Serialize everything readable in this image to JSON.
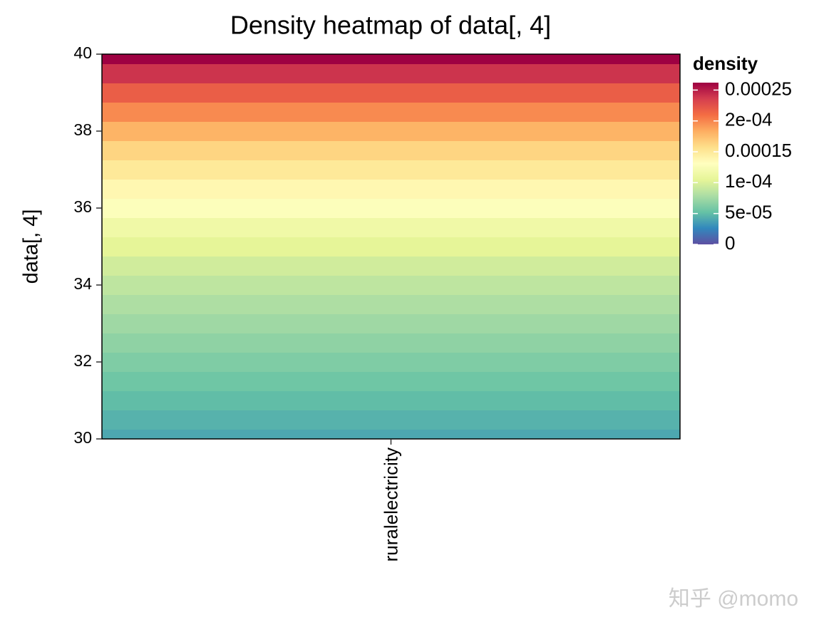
{
  "chart_data": {
    "type": "heatmap",
    "title": "Density heatmap of data[, 4]",
    "ylabel": "data[, 4]",
    "categories": [
      "ruralelectricity"
    ],
    "y": [
      30,
      30.5,
      31,
      31.5,
      32,
      32.5,
      33,
      33.5,
      34,
      34.5,
      35,
      35.5,
      36,
      36.5,
      37,
      37.5,
      38,
      38.5,
      39,
      39.5,
      40
    ],
    "density": [
      4e-05,
      4.5e-05,
      5e-05,
      5.6e-05,
      6.2e-05,
      6.8e-05,
      7.4e-05,
      8e-05,
      8.7e-05,
      9.5e-05,
      0.000105,
      0.000115,
      0.000128,
      0.000138,
      0.00015,
      0.000163,
      0.00018,
      0.000198,
      0.000218,
      0.00024,
      0.000262
    ],
    "ylim": [
      30,
      40
    ],
    "yticks": [
      30,
      32,
      34,
      36,
      38,
      40
    ],
    "legend_title": "density",
    "clim": [
      0,
      0.000262
    ],
    "cticks": [
      0,
      {
        "value": 5e-05,
        "label": "5e-05"
      },
      {
        "value": 0.0001,
        "label": "1e-04"
      },
      0.00015,
      {
        "value": 0.0002,
        "label": "2e-04"
      },
      0.00025
    ],
    "palette": [
      "#5e4fa2",
      "#3288bd",
      "#66c2a5",
      "#abdda4",
      "#e6f598",
      "#ffffbf",
      "#fee08b",
      "#fdae61",
      "#f46d43",
      "#d53e4f",
      "#9e0142"
    ],
    "watermark": "知乎 @momo"
  }
}
